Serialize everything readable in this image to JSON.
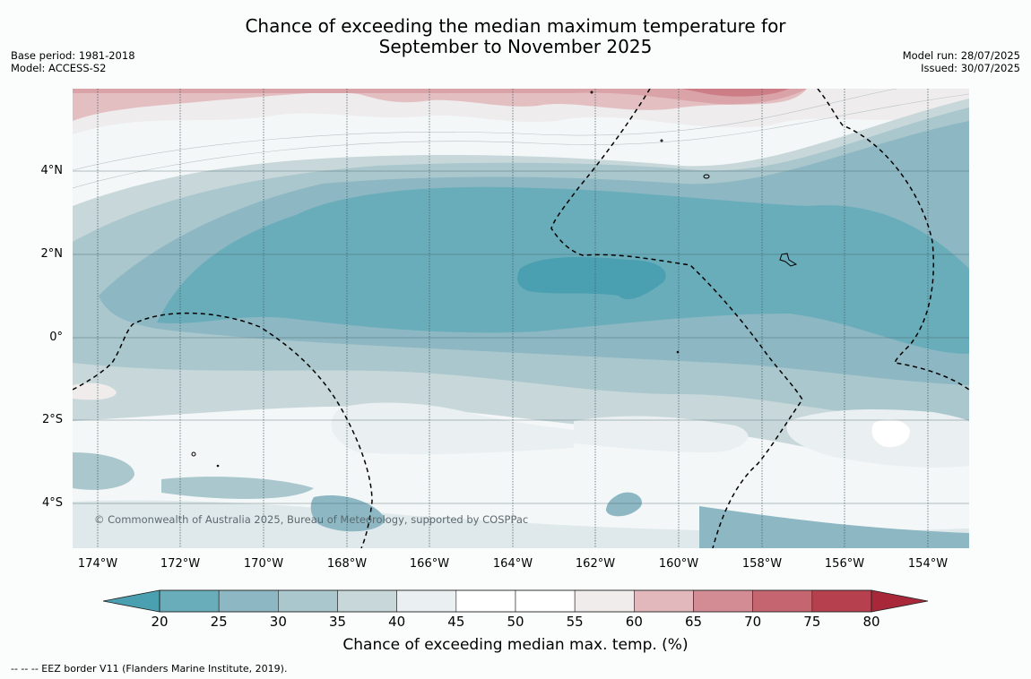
{
  "title_line1": "Chance of exceeding the median maximum temperature for",
  "title_line2": "September to November 2025",
  "meta_left": {
    "base_period": "Base period: 1981-2018",
    "model": "Model: ACCESS-S2"
  },
  "meta_right": {
    "model_run": "Model run: 28/07/2025",
    "issued": "Issued: 30/07/2025"
  },
  "lat_labels": [
    "4°N",
    "2°N",
    "0°",
    "2°S",
    "4°S"
  ],
  "lon_labels": [
    "174°W",
    "172°W",
    "170°W",
    "168°W",
    "166°W",
    "164°W",
    "162°W",
    "160°W",
    "158°W",
    "156°W",
    "154°W"
  ],
  "copyright": "© Commonwealth of Australia 2025, Bureau of Meteorology, supported by COSPPac",
  "colorbar": {
    "ticks": [
      "20",
      "25",
      "30",
      "35",
      "40",
      "45",
      "50",
      "55",
      "60",
      "65",
      "70",
      "75",
      "80"
    ],
    "colors": [
      "#4a9fb0",
      "#6aadba",
      "#8cb7c3",
      "#a9c7cc",
      "#c7d7da",
      "#eaeff1",
      "#ffffff",
      "#ffffff",
      "#f1ecec",
      "#e3b8bc",
      "#d38c94",
      "#c5656f",
      "#b6404d",
      "#a8283a"
    ],
    "label": "Chance of exceeding median max. temp. (%)"
  },
  "eez_note": "--  --  -- EEZ border V11 (Flanders Marine Institute, 2019)."
}
